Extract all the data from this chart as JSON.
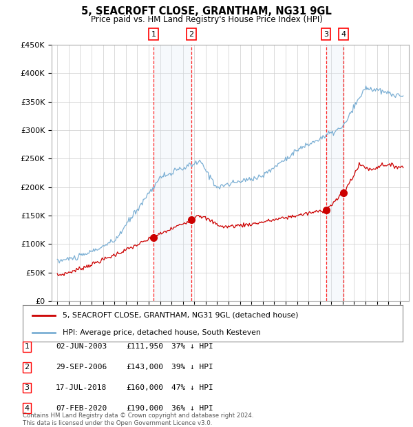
{
  "title": "5, SEACROFT CLOSE, GRANTHAM, NG31 9GL",
  "subtitle": "Price paid vs. HM Land Registry's House Price Index (HPI)",
  "ylim": [
    0,
    450000
  ],
  "yticks": [
    0,
    50000,
    100000,
    150000,
    200000,
    250000,
    300000,
    350000,
    400000,
    450000
  ],
  "ytick_labels": [
    "£0",
    "£50K",
    "£100K",
    "£150K",
    "£200K",
    "£250K",
    "£300K",
    "£350K",
    "£400K",
    "£450K"
  ],
  "sale_color": "#cc0000",
  "hpi_color": "#7bafd4",
  "transactions": [
    {
      "label": "1",
      "date": 2003.42,
      "price": 111950
    },
    {
      "label": "2",
      "date": 2006.75,
      "price": 143000
    },
    {
      "label": "3",
      "date": 2018.54,
      "price": 160000
    },
    {
      "label": "4",
      "date": 2020.09,
      "price": 190000
    }
  ],
  "legend_entries": [
    "5, SEACROFT CLOSE, GRANTHAM, NG31 9GL (detached house)",
    "HPI: Average price, detached house, South Kesteven"
  ],
  "table_rows": [
    [
      "1",
      "02-JUN-2003",
      "£111,950",
      "37% ↓ HPI"
    ],
    [
      "2",
      "29-SEP-2006",
      "£143,000",
      "39% ↓ HPI"
    ],
    [
      "3",
      "17-JUL-2018",
      "£160,000",
      "47% ↓ HPI"
    ],
    [
      "4",
      "07-FEB-2020",
      "£190,000",
      "36% ↓ HPI"
    ]
  ],
  "footnote": "Contains HM Land Registry data © Crown copyright and database right 2024.\nThis data is licensed under the Open Government Licence v3.0.",
  "background_color": "#ffffff",
  "grid_color": "#cccccc",
  "shading_color": "#dce8f5"
}
